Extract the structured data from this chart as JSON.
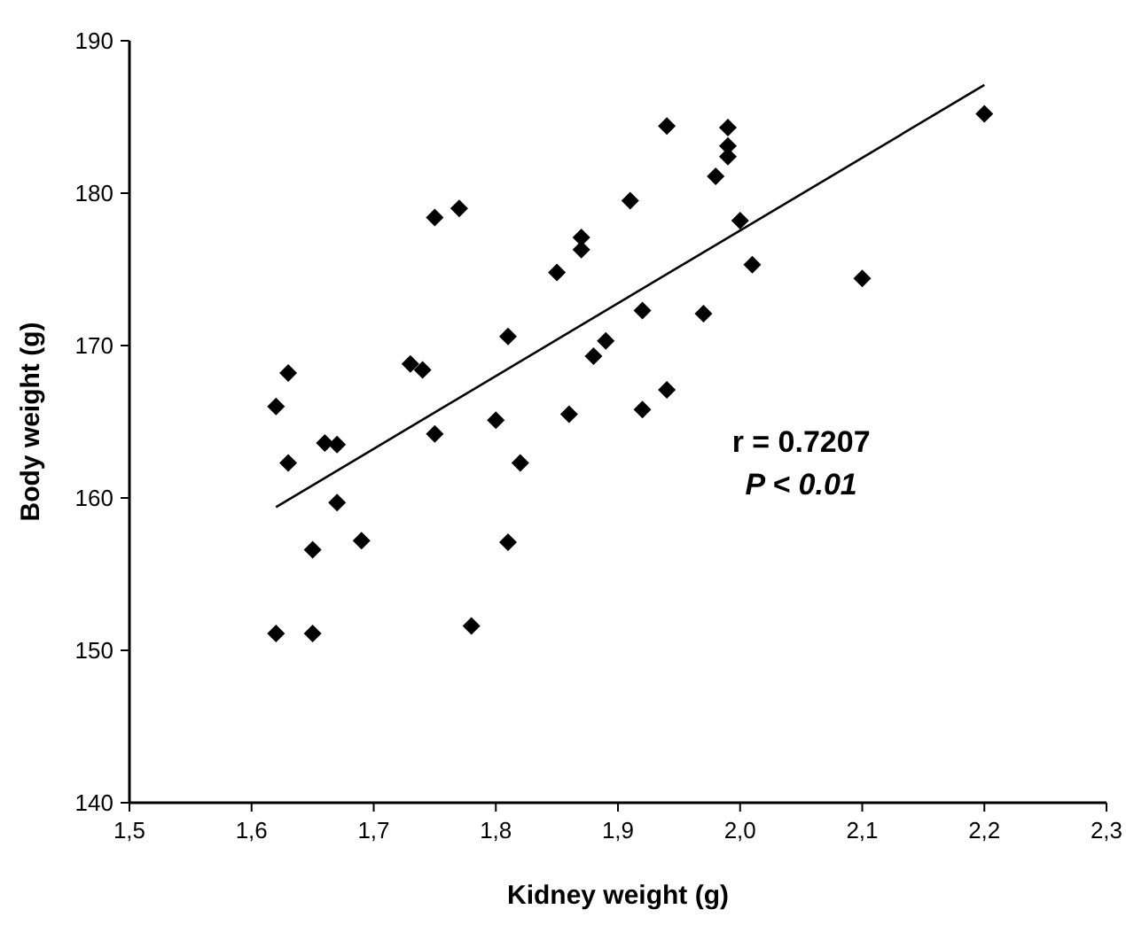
{
  "chart_data": {
    "type": "scatter",
    "xlabel": "Kidney weight (g)",
    "ylabel": "Body weight (g)",
    "xlim": [
      1.5,
      2.3
    ],
    "ylim": [
      140,
      190
    ],
    "xticks": [
      {
        "value": 1.5,
        "label": "1,5"
      },
      {
        "value": 1.6,
        "label": "1,6"
      },
      {
        "value": 1.7,
        "label": "1,7"
      },
      {
        "value": 1.8,
        "label": "1,8"
      },
      {
        "value": 1.9,
        "label": "1,9"
      },
      {
        "value": 2.0,
        "label": "2,0"
      },
      {
        "value": 2.1,
        "label": "2,1"
      },
      {
        "value": 2.2,
        "label": "2,2"
      },
      {
        "value": 2.3,
        "label": "2,3"
      }
    ],
    "yticks": [
      140,
      150,
      160,
      170,
      180,
      190
    ],
    "grid": false,
    "marker": "diamond",
    "annotations": [
      "r = 0.7207",
      "P < 0.01"
    ],
    "series": [
      {
        "color": "#000000",
        "x": [
          1.62,
          1.63,
          1.63,
          1.62,
          1.65,
          1.65,
          1.66,
          1.67,
          1.67,
          1.69,
          1.73,
          1.74,
          1.75,
          1.77,
          1.75,
          1.78,
          1.8,
          1.81,
          1.81,
          1.82,
          1.85,
          1.87,
          1.87,
          1.86,
          1.88,
          1.89,
          1.91,
          1.92,
          1.92,
          1.94,
          1.94,
          1.97,
          1.98,
          1.99,
          1.99,
          1.99,
          2.0,
          2.01,
          2.1,
          2.2
        ],
        "values": [
          166,
          168.2,
          162.3,
          151.1,
          151.1,
          156.6,
          163.6,
          163.5,
          159.7,
          157.2,
          168.8,
          168.4,
          178.4,
          179,
          164.2,
          151.6,
          165.1,
          170.6,
          157.1,
          162.3,
          174.8,
          177.1,
          176.3,
          165.5,
          169.3,
          170.3,
          179.5,
          172.3,
          165.8,
          184.4,
          167.1,
          172.1,
          181.1,
          184.3,
          183.1,
          182.4,
          178.2,
          175.3,
          174.4,
          185.2
        ]
      },
      {
        "type": "line",
        "color": "#000000",
        "marker": "none",
        "x": [
          1.62,
          2.2
        ],
        "values": [
          159.4,
          187.1
        ]
      }
    ]
  }
}
